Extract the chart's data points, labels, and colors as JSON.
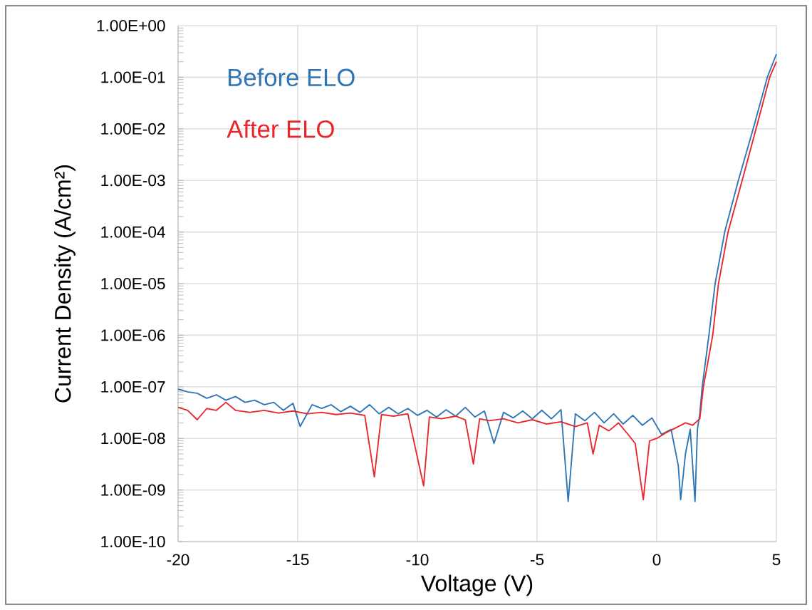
{
  "chart_data": {
    "type": "line",
    "xlabel": "Voltage (V)",
    "ylabel": "Current Density (A/cm²)",
    "log": "y",
    "grid": true,
    "legend": "top left",
    "marker": "none",
    "line_style": "solid",
    "xlim": [
      -20,
      5
    ],
    "xticks": [
      -20,
      -15,
      -10,
      -5,
      0,
      5
    ],
    "ylim": [
      1e-10,
      1
    ],
    "yticks": [
      {
        "value": 1e-10,
        "label": "1.00E-10"
      },
      {
        "value": 1e-09,
        "label": "1.00E-09"
      },
      {
        "value": 1e-08,
        "label": "1.00E-08"
      },
      {
        "value": 1e-07,
        "label": "1.00E-07"
      },
      {
        "value": 1e-06,
        "label": "1.00E-06"
      },
      {
        "value": 1e-05,
        "label": "1.00E-05"
      },
      {
        "value": 0.0001,
        "label": "1.00E-04"
      },
      {
        "value": 0.001,
        "label": "1.00E-03"
      },
      {
        "value": 0.01,
        "label": "1.00E-02"
      },
      {
        "value": 0.1,
        "label": "1.00E-01"
      },
      {
        "value": 1,
        "label": "1.00E+00"
      }
    ],
    "series": [
      {
        "name": "Before ELO",
        "color": "#2e75b6",
        "x": [
          -20,
          -19.6,
          -19.2,
          -18.8,
          -18.4,
          -18,
          -17.6,
          -17.2,
          -16.8,
          -16.4,
          -16,
          -15.6,
          -15.2,
          -14.9,
          -14.4,
          -14,
          -13.6,
          -13.2,
          -12.8,
          -12.4,
          -12,
          -11.6,
          -11.2,
          -10.8,
          -10.4,
          -10,
          -9.6,
          -9.2,
          -8.8,
          -8.4,
          -8,
          -7.6,
          -7.2,
          -6.8,
          -6.4,
          -6,
          -5.6,
          -5.2,
          -4.8,
          -4.4,
          -4,
          -3.7,
          -3.4,
          -3,
          -2.6,
          -2.2,
          -1.8,
          -1.4,
          -1,
          -0.6,
          -0.2,
          0.2,
          0.6,
          0.9,
          1.0,
          1.2,
          1.4,
          1.6,
          1.7,
          1.8,
          1.9,
          2.18,
          2.44,
          2.84,
          3.41,
          4.03,
          4.62,
          5
        ],
        "values": [
          9e-08,
          8e-08,
          7.5e-08,
          6e-08,
          7e-08,
          5.5e-08,
          6.5e-08,
          5e-08,
          5.5e-08,
          4.5e-08,
          5e-08,
          3.5e-08,
          4.8e-08,
          1.7e-08,
          4.5e-08,
          3.8e-08,
          4.5e-08,
          3.3e-08,
          4.2e-08,
          3.2e-08,
          4.5e-08,
          3e-08,
          4e-08,
          3e-08,
          3.8e-08,
          2.8e-08,
          3.5e-08,
          2.6e-08,
          3.6e-08,
          2.7e-08,
          4e-08,
          2.6e-08,
          3.4e-08,
          8e-09,
          3.2e-08,
          2.5e-08,
          3.4e-08,
          2.4e-08,
          3.5e-08,
          2.4e-08,
          3.6e-08,
          6e-10,
          3e-08,
          2.2e-08,
          3.2e-08,
          2e-08,
          3e-08,
          1.9e-08,
          2.8e-08,
          1.8e-08,
          2.5e-08,
          1.2e-08,
          1.5e-08,
          3e-09,
          6.5e-10,
          5e-09,
          1.5e-08,
          6e-10,
          1.5e-08,
          3e-08,
          1e-07,
          1e-06,
          1e-05,
          0.0001,
          0.001,
          0.01,
          0.1,
          0.28
        ]
      },
      {
        "name": "After ELO",
        "color": "#e8262b",
        "x": [
          -20,
          -19.6,
          -19.2,
          -18.8,
          -18.4,
          -18,
          -17.6,
          -17,
          -16.4,
          -15.8,
          -15.2,
          -14.6,
          -14,
          -13.4,
          -12.8,
          -12.2,
          -11.8,
          -11.5,
          -11,
          -10.4,
          -9.74,
          -9.5,
          -9,
          -8.4,
          -8,
          -7.66,
          -7.4,
          -7,
          -6.4,
          -5.8,
          -5.2,
          -4.6,
          -4,
          -3.4,
          -2.9,
          -2.66,
          -2.4,
          -2,
          -1.6,
          -1.2,
          -0.9,
          -0.56,
          -0.3,
          0,
          0.4,
          0.8,
          1.2,
          1.5,
          1.8,
          1.95,
          2.34,
          2.58,
          2.98,
          3.57,
          4.15,
          4.72,
          5
        ],
        "values": [
          4e-08,
          3.5e-08,
          2.3e-08,
          3.8e-08,
          3.5e-08,
          5e-08,
          3.5e-08,
          3.2e-08,
          3.5e-08,
          3.1e-08,
          3.4e-08,
          3e-08,
          3.2e-08,
          2.9e-08,
          3.1e-08,
          2.8e-08,
          1.8e-09,
          2.9e-08,
          2.7e-08,
          3e-08,
          1.2e-09,
          2.6e-08,
          2.4e-08,
          2.7e-08,
          2.3e-08,
          3.2e-09,
          2.4e-08,
          2.2e-08,
          2.4e-08,
          2e-08,
          2.3e-08,
          1.9e-08,
          2.1e-08,
          1.7e-08,
          2e-08,
          5e-09,
          1.8e-08,
          1.4e-08,
          2e-08,
          1.2e-08,
          8e-09,
          6.5e-10,
          9e-09,
          1e-08,
          1.3e-08,
          1.6e-08,
          2e-08,
          1.8e-08,
          2.4e-08,
          1e-07,
          1e-06,
          1e-05,
          0.0001,
          0.001,
          0.01,
          0.1,
          0.2
        ]
      }
    ]
  }
}
